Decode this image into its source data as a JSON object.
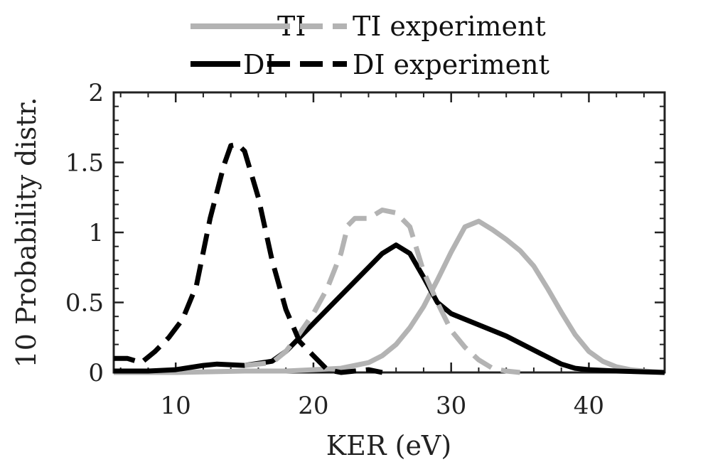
{
  "chart_data": {
    "type": "line",
    "xlabel": "KER (eV)",
    "ylabel": "10 Probability distr.",
    "xlim": [
      5.5,
      45.5
    ],
    "ylim": [
      0,
      2
    ],
    "xticks": [
      10,
      20,
      30,
      40
    ],
    "yticks": [
      0,
      0.5,
      1,
      1.5,
      2
    ],
    "xtick_labels": [
      "10",
      "20",
      "30",
      "40"
    ],
    "ytick_labels": [
      "0",
      "0.5",
      "1",
      "1.5",
      "2"
    ],
    "legend_position": "top",
    "grid": false,
    "series": [
      {
        "name": "TI",
        "color": "#b3b3b3",
        "style": "solid",
        "x": [
          5.5,
          10,
          15,
          18,
          20,
          22,
          24,
          25,
          26,
          27,
          28,
          29,
          30,
          31,
          32,
          33,
          34,
          35,
          36,
          37,
          38,
          39,
          40,
          41,
          42,
          43,
          44,
          45.5
        ],
        "y": [
          0.0,
          0.0,
          0.01,
          0.01,
          0.02,
          0.03,
          0.07,
          0.12,
          0.2,
          0.32,
          0.47,
          0.66,
          0.86,
          1.04,
          1.08,
          1.02,
          0.95,
          0.87,
          0.76,
          0.6,
          0.43,
          0.27,
          0.15,
          0.08,
          0.04,
          0.02,
          0.01,
          0.0
        ]
      },
      {
        "name": "TI experiment",
        "color": "#b3b3b3",
        "style": "dashed",
        "x": [
          15,
          17,
          18,
          19,
          20,
          21,
          22,
          22.5,
          23,
          24,
          25,
          26,
          27,
          28,
          29,
          30,
          31,
          32,
          33,
          34,
          35
        ],
        "y": [
          0.05,
          0.07,
          0.15,
          0.28,
          0.42,
          0.6,
          0.85,
          1.05,
          1.1,
          1.1,
          1.16,
          1.14,
          1.04,
          0.72,
          0.5,
          0.3,
          0.18,
          0.09,
          0.03,
          0.01,
          0.0
        ]
      },
      {
        "name": "DI",
        "color": "#000000",
        "style": "solid",
        "x": [
          5.5,
          8,
          10,
          12,
          13,
          15,
          17,
          18,
          20,
          22,
          24,
          25,
          26,
          27,
          28,
          29,
          30,
          32,
          34,
          36,
          38,
          39,
          40,
          42,
          45.5
        ],
        "y": [
          0.01,
          0.01,
          0.02,
          0.05,
          0.06,
          0.05,
          0.08,
          0.15,
          0.35,
          0.55,
          0.75,
          0.85,
          0.91,
          0.85,
          0.68,
          0.5,
          0.42,
          0.34,
          0.26,
          0.16,
          0.06,
          0.03,
          0.02,
          0.01,
          0.0
        ]
      },
      {
        "name": "DI experiment",
        "color": "#000000",
        "style": "dashed",
        "x": [
          5.5,
          6.5,
          7.5,
          8.5,
          9.5,
          10.5,
          11.5,
          12.5,
          13.5,
          14,
          14.5,
          15,
          16,
          17,
          18,
          19,
          20,
          21,
          22,
          23,
          24,
          25
        ],
        "y": [
          0.1,
          0.1,
          0.07,
          0.15,
          0.25,
          0.38,
          0.62,
          1.1,
          1.48,
          1.62,
          1.63,
          1.58,
          1.25,
          0.8,
          0.45,
          0.22,
          0.12,
          0.02,
          0.0,
          0.01,
          0.02,
          0.0
        ]
      }
    ]
  }
}
